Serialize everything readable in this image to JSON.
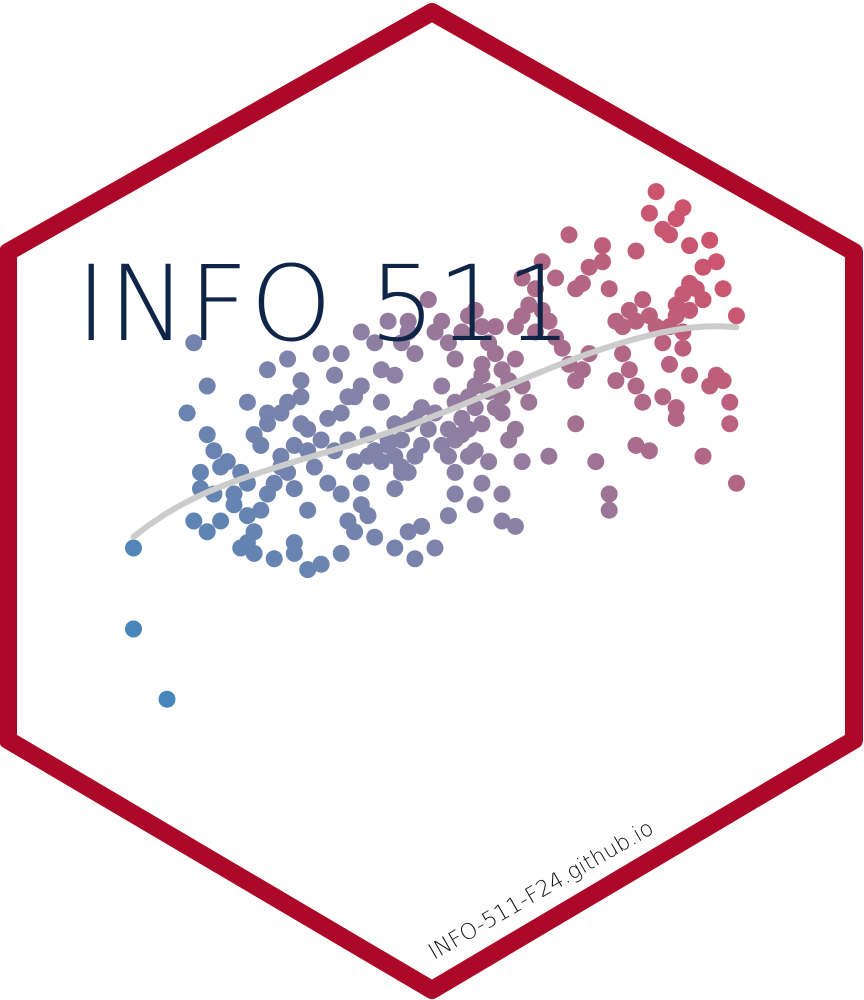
{
  "title": "INFO 511",
  "url": "INFO-511-F24.github.io",
  "colors": {
    "border": "#ac0827",
    "title": "#0f2548",
    "url": "#111111",
    "trend": "#cccccc",
    "dot_low": "#3a86c0",
    "dot_mid": "#8a82a6",
    "dot_high": "#e0465e"
  },
  "chart_data": {
    "type": "scatter",
    "title": "",
    "xlabel": "",
    "ylabel": "",
    "trend": "smooth",
    "grid": false,
    "legend": "none",
    "xlim": [
      0,
      100
    ],
    "ylim": [
      0,
      100
    ],
    "points": [
      [
        5,
        30
      ],
      [
        5,
        15
      ],
      [
        10,
        2
      ],
      [
        14,
        68
      ],
      [
        13,
        55
      ],
      [
        16,
        51
      ],
      [
        15,
        44
      ],
      [
        14,
        35
      ],
      [
        15,
        41
      ],
      [
        19,
        46
      ],
      [
        17,
        48
      ],
      [
        20,
        40
      ],
      [
        18,
        35
      ],
      [
        16,
        33
      ],
      [
        17,
        40
      ],
      [
        16,
        60
      ],
      [
        18,
        45
      ],
      [
        22,
        42
      ],
      [
        23,
        51
      ],
      [
        22,
        57
      ],
      [
        25,
        55
      ],
      [
        24,
        49
      ],
      [
        21,
        44
      ],
      [
        26,
        42
      ],
      [
        27,
        45
      ],
      [
        25,
        40
      ],
      [
        24,
        37
      ],
      [
        22,
        36
      ],
      [
        23,
        33
      ],
      [
        20,
        38
      ],
      [
        21,
        30
      ],
      [
        22,
        31
      ],
      [
        26,
        28
      ],
      [
        23,
        29
      ],
      [
        25,
        53
      ],
      [
        27,
        55
      ],
      [
        30,
        53
      ],
      [
        29,
        49
      ],
      [
        31,
        52
      ],
      [
        28,
        57
      ],
      [
        30,
        58
      ],
      [
        27,
        47
      ],
      [
        28,
        44
      ],
      [
        29,
        41
      ],
      [
        31,
        37
      ],
      [
        31,
        48
      ],
      [
        27,
        45
      ],
      [
        29,
        31
      ],
      [
        32,
        45
      ],
      [
        33,
        50
      ],
      [
        34,
        54
      ],
      [
        35,
        62
      ],
      [
        36,
        55
      ],
      [
        35,
        48
      ],
      [
        34,
        42
      ],
      [
        37,
        58
      ],
      [
        36,
        66
      ],
      [
        38,
        58
      ],
      [
        39,
        60
      ],
      [
        40,
        51
      ],
      [
        38,
        46
      ],
      [
        37,
        50
      ],
      [
        36,
        40
      ],
      [
        39,
        42
      ],
      [
        40,
        47
      ],
      [
        37,
        35
      ],
      [
        39,
        38
      ],
      [
        40,
        36
      ],
      [
        42,
        57
      ],
      [
        43,
        50
      ],
      [
        44,
        47
      ],
      [
        45,
        50
      ],
      [
        46,
        53
      ],
      [
        47,
        54
      ],
      [
        44,
        53
      ],
      [
        43,
        49
      ],
      [
        45,
        45
      ],
      [
        46,
        44
      ],
      [
        47,
        47
      ],
      [
        48,
        49
      ],
      [
        44,
        41
      ],
      [
        45,
        44
      ],
      [
        42,
        46
      ],
      [
        41,
        48
      ],
      [
        43,
        72
      ],
      [
        42,
        63
      ],
      [
        45,
        68
      ],
      [
        44,
        62
      ],
      [
        47,
        66
      ],
      [
        46,
        70
      ],
      [
        48,
        56
      ],
      [
        49,
        52
      ],
      [
        50,
        55
      ],
      [
        51,
        49
      ],
      [
        52,
        52
      ],
      [
        53,
        50
      ],
      [
        54,
        51
      ],
      [
        55,
        52
      ],
      [
        52,
        47
      ],
      [
        53,
        44
      ],
      [
        55,
        47
      ],
      [
        56,
        48
      ],
      [
        54,
        54
      ],
      [
        53,
        57
      ],
      [
        57,
        53
      ],
      [
        56,
        56
      ],
      [
        49,
        76
      ],
      [
        50,
        70
      ],
      [
        51,
        72
      ],
      [
        52,
        68
      ],
      [
        53,
        65
      ],
      [
        54,
        70
      ],
      [
        55,
        73
      ],
      [
        56,
        74
      ],
      [
        57,
        71
      ],
      [
        58,
        68
      ],
      [
        59,
        66
      ],
      [
        60,
        63
      ],
      [
        61,
        61
      ],
      [
        62,
        65
      ],
      [
        63,
        60
      ],
      [
        64,
        57
      ],
      [
        60,
        58
      ],
      [
        55,
        58
      ],
      [
        56,
        60
      ],
      [
        57,
        62
      ],
      [
        58,
        59
      ],
      [
        59,
        56
      ],
      [
        60,
        55
      ],
      [
        61,
        50
      ],
      [
        62,
        52
      ],
      [
        63,
        46
      ],
      [
        53,
        40
      ],
      [
        56,
        38
      ],
      [
        58,
        46
      ],
      [
        60,
        40
      ],
      [
        62,
        71
      ],
      [
        63,
        73
      ],
      [
        64,
        75
      ],
      [
        65,
        78
      ],
      [
        66,
        74
      ],
      [
        67,
        72
      ],
      [
        65,
        70
      ],
      [
        68,
        69
      ],
      [
        69,
        67
      ],
      [
        70,
        64
      ],
      [
        71,
        61
      ],
      [
        72,
        63
      ],
      [
        73,
        66
      ],
      [
        70,
        88
      ],
      [
        75,
        83
      ],
      [
        72,
        79
      ],
      [
        76,
        78
      ],
      [
        77,
        72
      ],
      [
        78,
        71
      ],
      [
        79,
        74
      ],
      [
        80,
        72
      ],
      [
        81,
        76
      ],
      [
        82,
        73
      ],
      [
        83,
        71
      ],
      [
        84,
        68
      ],
      [
        78,
        66
      ],
      [
        79,
        63
      ],
      [
        80,
        60
      ],
      [
        81,
        57
      ],
      [
        77,
        61
      ],
      [
        85,
        71
      ],
      [
        86,
        73
      ],
      [
        87,
        70
      ],
      [
        88,
        74
      ],
      [
        86,
        75
      ],
      [
        87,
        77
      ],
      [
        89,
        78
      ],
      [
        90,
        76
      ],
      [
        88,
        79
      ],
      [
        87,
        67
      ],
      [
        88,
        62
      ],
      [
        85,
        64
      ],
      [
        84,
        58
      ],
      [
        86,
        56
      ],
      [
        80,
        85
      ],
      [
        82,
        92
      ],
      [
        83,
        96
      ],
      [
        84,
        89
      ],
      [
        85,
        88
      ],
      [
        86,
        91
      ],
      [
        87,
        93
      ],
      [
        88,
        86
      ],
      [
        90,
        82
      ],
      [
        91,
        87
      ],
      [
        92,
        83
      ],
      [
        93,
        78
      ],
      [
        95,
        73
      ],
      [
        91,
        60
      ],
      [
        92,
        62
      ],
      [
        93,
        61
      ],
      [
        94,
        57
      ],
      [
        94,
        53
      ],
      [
        80,
        49
      ],
      [
        82,
        48
      ],
      [
        86,
        54
      ],
      [
        90,
        47
      ],
      [
        95,
        42
      ],
      [
        67,
        47
      ],
      [
        71,
        53
      ],
      [
        74,
        46
      ],
      [
        76,
        37
      ],
      [
        76,
        40
      ],
      [
        29,
        29
      ],
      [
        33,
        27
      ],
      [
        31,
        26
      ],
      [
        36,
        29
      ],
      [
        38,
        33
      ],
      [
        41,
        32
      ],
      [
        44,
        30
      ],
      [
        46,
        33
      ],
      [
        48,
        34
      ],
      [
        47,
        28
      ],
      [
        50,
        30
      ],
      [
        52,
        36
      ],
      [
        57,
        42
      ],
      [
        60,
        35
      ],
      [
        62,
        34
      ],
      [
        25,
        63
      ],
      [
        28,
        65
      ],
      [
        30,
        61
      ],
      [
        33,
        66
      ],
      [
        39,
        70
      ],
      [
        41,
        68
      ],
      [
        46,
        72
      ],
      [
        51,
        60
      ],
      [
        57,
        64
      ],
      [
        59,
        71
      ],
      [
        63,
        80
      ],
      [
        66,
        83
      ],
      [
        68,
        80
      ],
      [
        71,
        78
      ],
      [
        73,
        82
      ],
      [
        75,
        86
      ]
    ]
  }
}
